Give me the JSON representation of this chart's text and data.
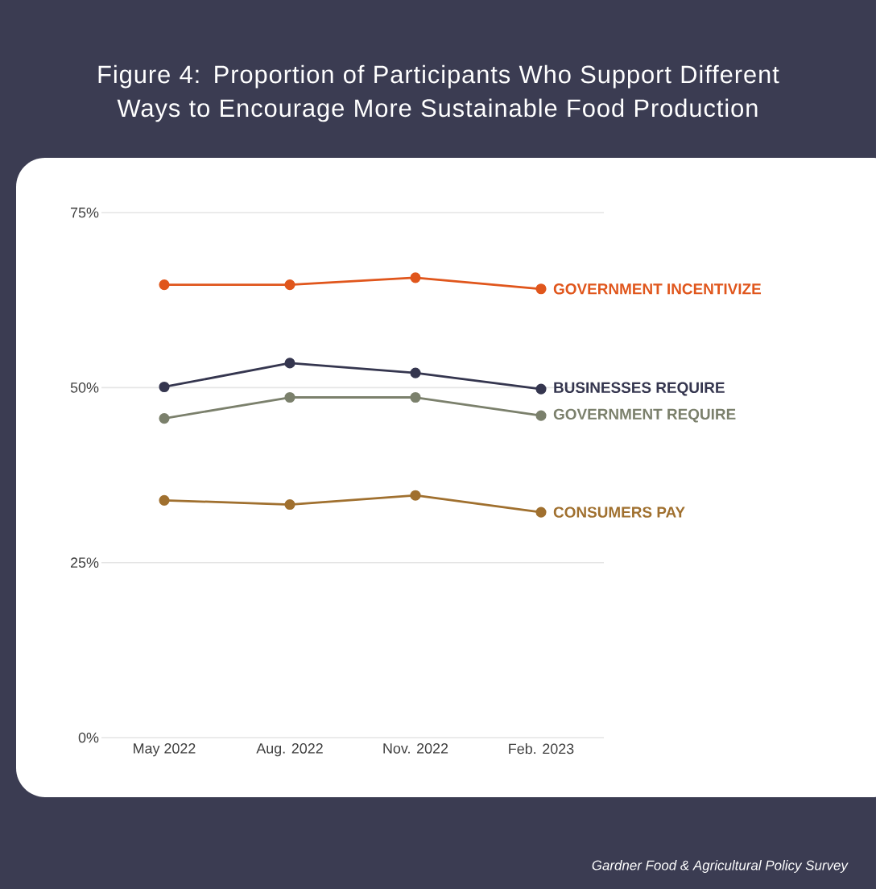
{
  "chart_data": {
    "type": "line",
    "title": "Figure 4: Proportion of Participants Who Support Different Ways to Encourage More Sustainable Food Production",
    "categories": [
      "May 2022",
      "Aug. 2022",
      "Nov. 2022",
      "Feb. 2023"
    ],
    "series": [
      {
        "name": "GOVERNMENT INCENTIVIZE",
        "color": "#e0561c",
        "values": [
          64.7,
          64.7,
          65.7,
          64.1
        ]
      },
      {
        "name": "BUSINESSES REQUIRE",
        "color": "#35364f",
        "values": [
          50.1,
          53.5,
          52.1,
          49.8
        ]
      },
      {
        "name": "GOVERNMENT REQUIRE",
        "color": "#7b806c",
        "values": [
          45.6,
          48.6,
          48.6,
          46.0
        ]
      },
      {
        "name": "CONSUMERS PAY",
        "color": "#a0702f",
        "values": [
          33.9,
          33.3,
          34.6,
          32.2
        ]
      }
    ],
    "ylim": [
      0,
      75
    ],
    "yticks": [
      {
        "value": 0,
        "label": "0%"
      },
      {
        "value": 25,
        "label": "25%"
      },
      {
        "value": 50,
        "label": "50%"
      },
      {
        "value": 75,
        "label": "75%"
      }
    ],
    "grid": "y",
    "legend": false,
    "marker": "circle",
    "line_style": "solid",
    "annotations": [
      "Gardner Food & Agricultural Policy Survey"
    ]
  }
}
